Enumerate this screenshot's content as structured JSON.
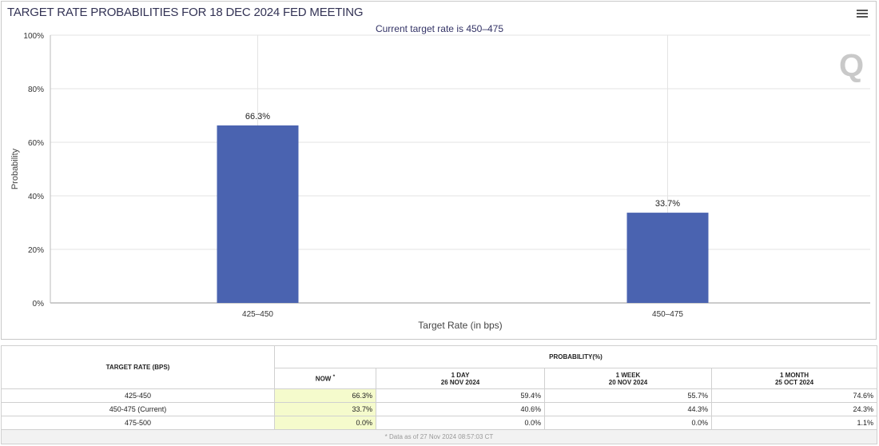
{
  "chart_data": {
    "type": "bar",
    "title": "TARGET RATE PROBABILITIES FOR 18 DEC 2024 FED MEETING",
    "subtitle": "Current target rate is 450–475",
    "categories": [
      "425–450",
      "450–475"
    ],
    "values": [
      66.3,
      33.7
    ],
    "data_labels": [
      "66.3%",
      "33.7%"
    ],
    "xlabel": "Target Rate (in bps)",
    "ylabel": "Probability",
    "ylim": [
      0,
      100
    ],
    "yticks": [
      "0%",
      "20%",
      "40%",
      "60%",
      "80%",
      "100%"
    ],
    "grid": true,
    "bar_color": "#4a63b0"
  },
  "menu_icon": "hamburger-menu-icon",
  "logo": "Q",
  "table": {
    "target_header": "TARGET RATE (BPS)",
    "prob_header": "PROBABILITY(%)",
    "columns": [
      {
        "l1": "NOW",
        "l2": "",
        "mark": "*"
      },
      {
        "l1": "1 DAY",
        "l2": "26 NOV 2024"
      },
      {
        "l1": "1 WEEK",
        "l2": "20 NOV 2024"
      },
      {
        "l1": "1 MONTH",
        "l2": "25 OCT 2024"
      }
    ],
    "rows": [
      {
        "rate": "425-450",
        "v": [
          "66.3%",
          "59.4%",
          "55.7%",
          "74.6%"
        ]
      },
      {
        "rate": "450-475 (Current)",
        "v": [
          "33.7%",
          "40.6%",
          "44.3%",
          "24.3%"
        ]
      },
      {
        "rate": "475-500",
        "v": [
          "0.0%",
          "0.0%",
          "0.0%",
          "1.1%"
        ]
      }
    ],
    "footnote": "* Data as of 27 Nov 2024 08:57:03 CT"
  }
}
